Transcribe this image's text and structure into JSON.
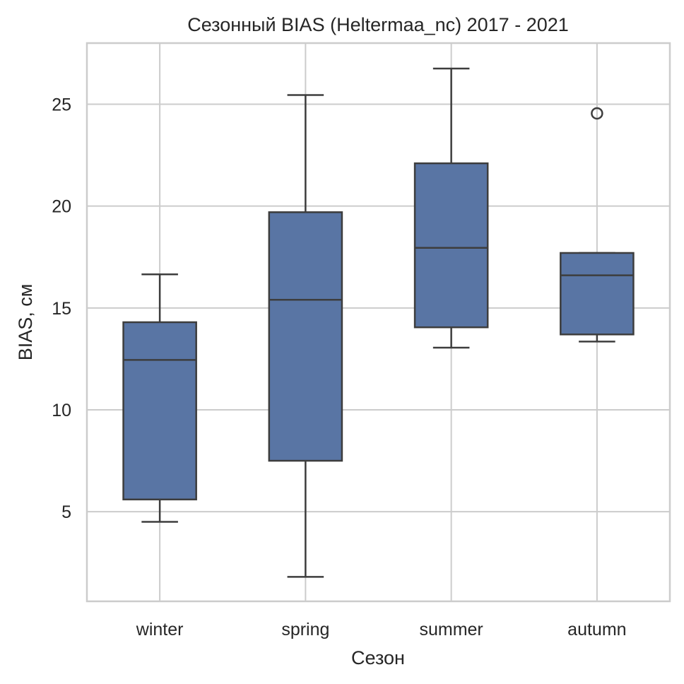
{
  "chart_data": {
    "type": "box",
    "title": "Сезонный BIAS (Heltermaa_nc) 2017 - 2021",
    "xlabel": "Сезон",
    "ylabel": "BIAS, см",
    "categories": [
      "winter",
      "spring",
      "summer",
      "autumn"
    ],
    "boxes": [
      {
        "category": "winter",
        "whislo": 4.5,
        "q1": 5.6,
        "median": 12.45,
        "q3": 14.3,
        "whishi": 16.65,
        "outliers": []
      },
      {
        "category": "spring",
        "whislo": 1.8,
        "q1": 7.5,
        "median": 15.4,
        "q3": 19.7,
        "whishi": 25.45,
        "outliers": []
      },
      {
        "category": "summer",
        "whislo": 13.05,
        "q1": 14.05,
        "median": 17.95,
        "q3": 22.1,
        "whishi": 26.75,
        "outliers": []
      },
      {
        "category": "autumn",
        "whislo": 13.35,
        "q1": 13.7,
        "median": 16.6,
        "q3": 17.7,
        "whishi": 17.7,
        "outliers": [
          24.55
        ]
      }
    ],
    "yticks": [
      5,
      10,
      15,
      20,
      25
    ],
    "ylim": [
      0.6,
      28.0
    ],
    "grid": true,
    "box_color": "#5975a4",
    "line_color": "#3d3d3d",
    "grid_color": "#cccccc"
  }
}
